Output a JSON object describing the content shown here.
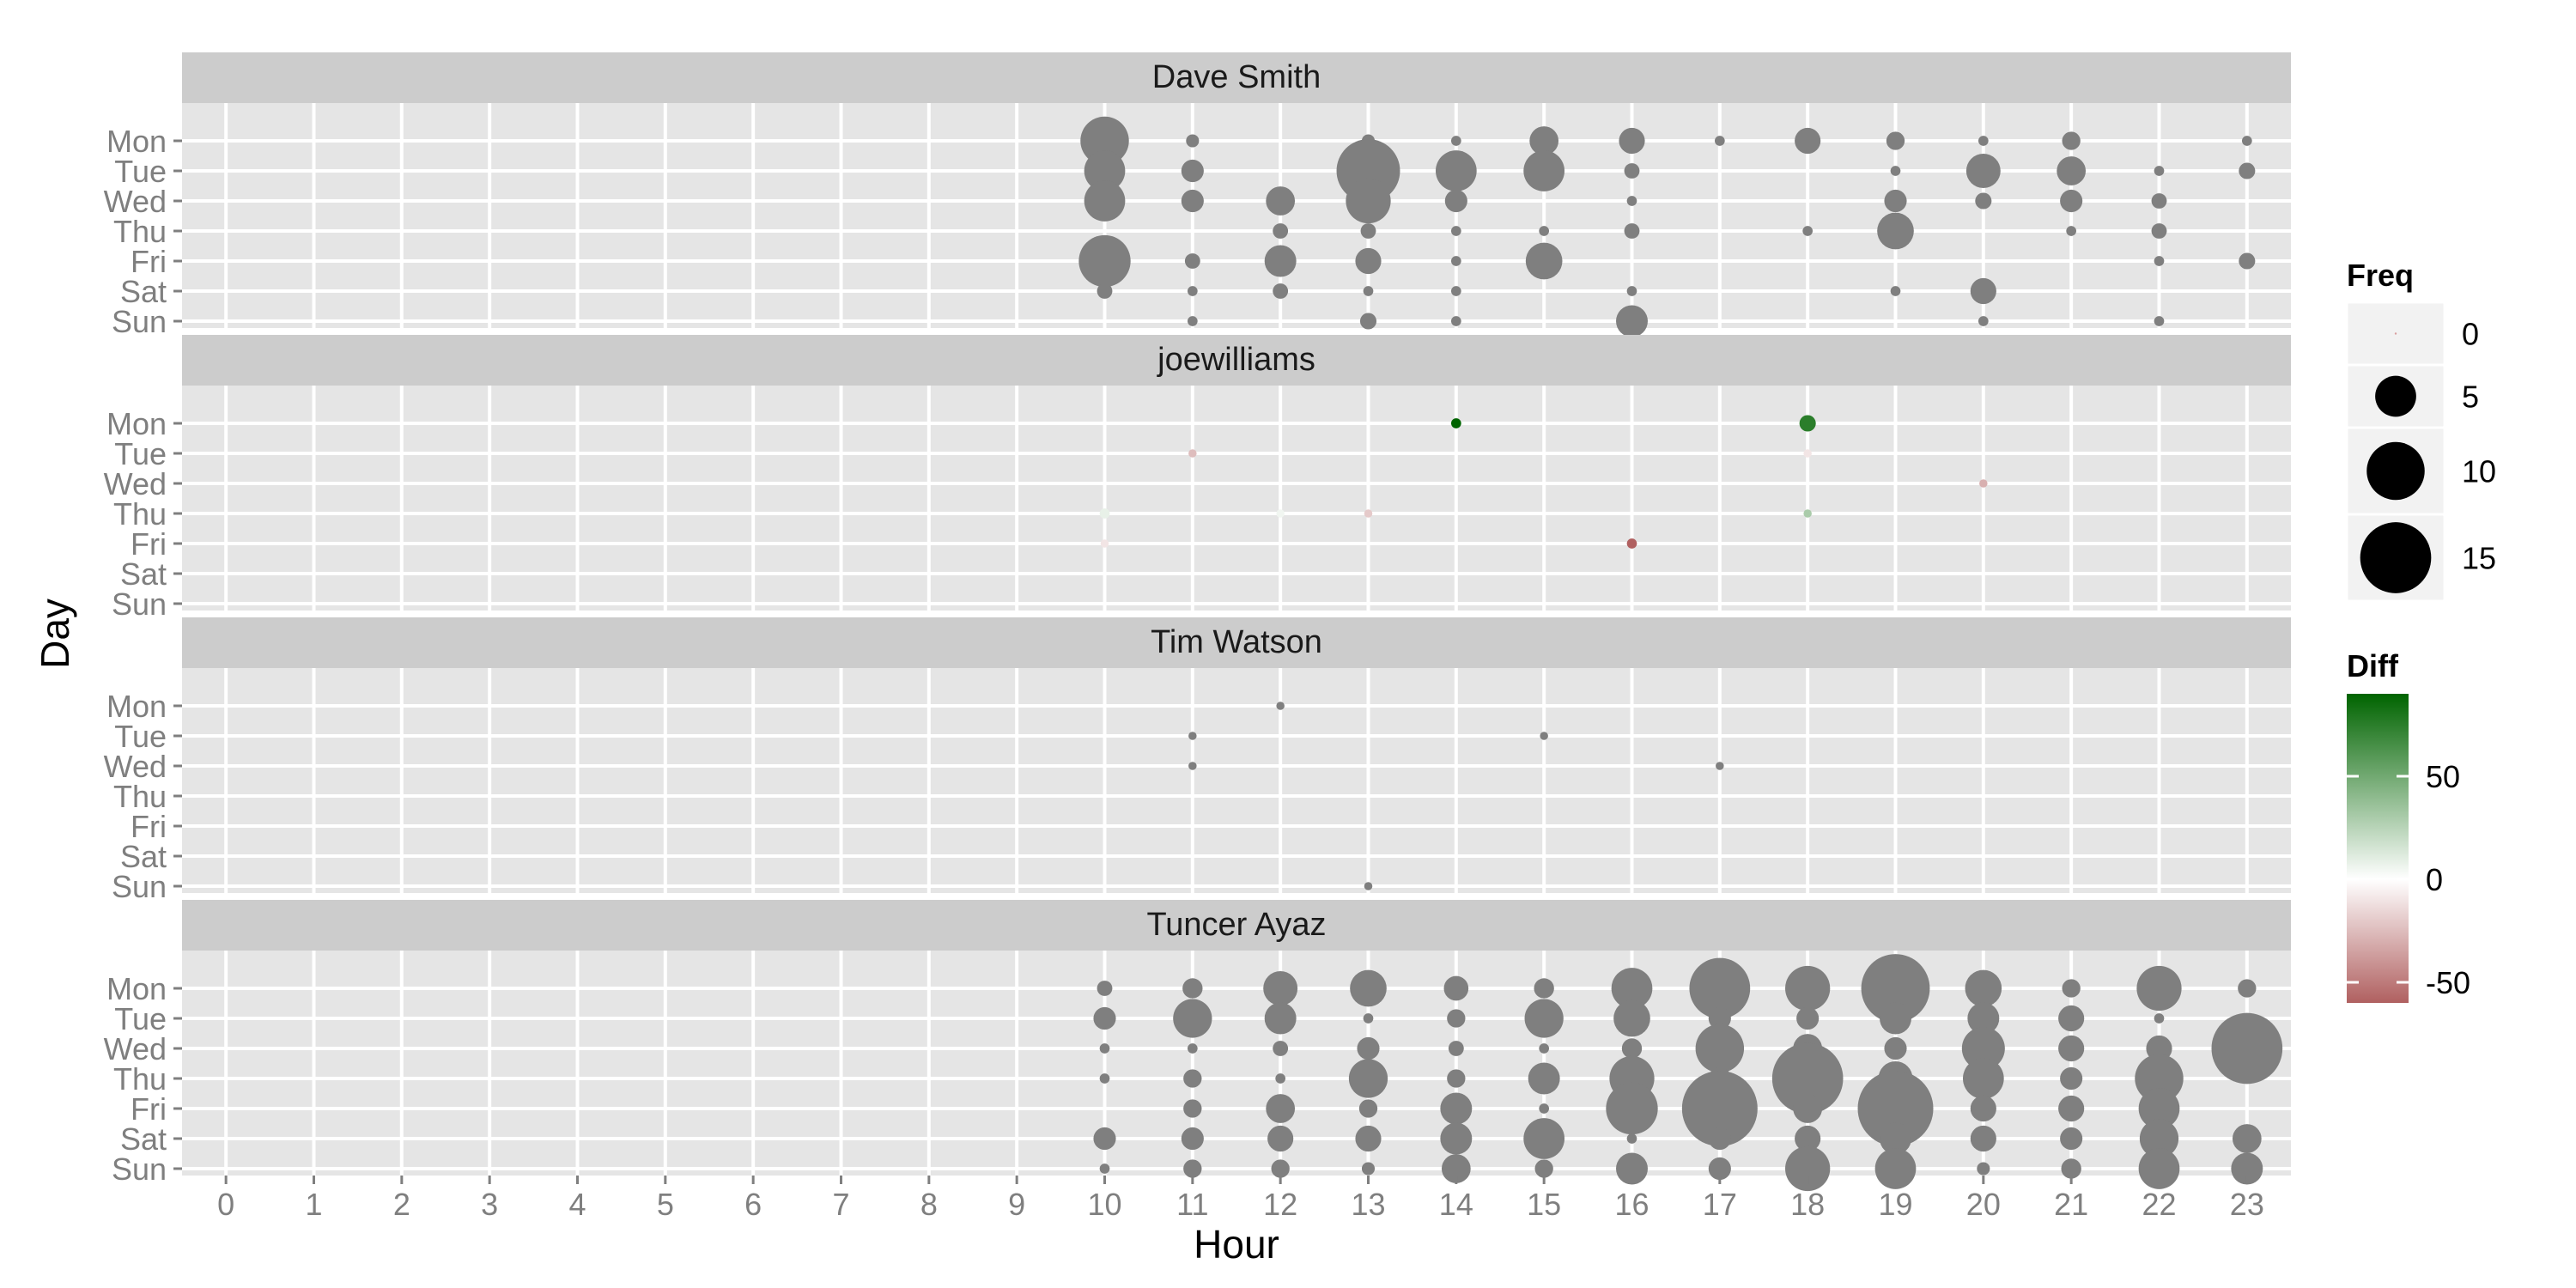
{
  "chart_data": {
    "type": "scatter",
    "xlabel": "Hour",
    "ylabel": "Day",
    "x_ticks": [
      "0",
      "1",
      "2",
      "3",
      "4",
      "5",
      "6",
      "7",
      "8",
      "9",
      "10",
      "11",
      "12",
      "13",
      "14",
      "15",
      "16",
      "17",
      "18",
      "19",
      "20",
      "21",
      "22",
      "23"
    ],
    "y_ticks": [
      "Mon",
      "Tue",
      "Wed",
      "Thu",
      "Fri",
      "Sat",
      "Sun"
    ],
    "grid": true,
    "legend_position": "right",
    "colors": {
      "panel_background": "#e5e5e5",
      "strip_background": "#cccccc",
      "grid": "#ffffff",
      "point_default": "#7f7f7f",
      "diff_high": "#006400",
      "diff_mid": "#ffffff",
      "diff_low": "#b06060"
    },
    "legends": {
      "size": {
        "title": "Freq",
        "breaks": [
          0,
          5,
          10,
          15
        ]
      },
      "color": {
        "title": "Diff",
        "breaks": [
          50,
          0,
          -50
        ],
        "range": [
          -60,
          90
        ]
      }
    },
    "facets": [
      {
        "name": "Dave Smith",
        "points": [
          {
            "hour": 10,
            "day": "Mon",
            "freq": 7
          },
          {
            "hour": 11,
            "day": "Mon",
            "freq": 0.5
          },
          {
            "hour": 13,
            "day": "Mon",
            "freq": 0.5
          },
          {
            "hour": 14,
            "day": "Mon",
            "freq": 0.3
          },
          {
            "hour": 15,
            "day": "Mon",
            "freq": 2.5
          },
          {
            "hour": 16,
            "day": "Mon",
            "freq": 2
          },
          {
            "hour": 17,
            "day": "Mon",
            "freq": 0.3
          },
          {
            "hour": 18,
            "day": "Mon",
            "freq": 2
          },
          {
            "hour": 19,
            "day": "Mon",
            "freq": 1
          },
          {
            "hour": 20,
            "day": "Mon",
            "freq": 0.3
          },
          {
            "hour": 21,
            "day": "Mon",
            "freq": 1
          },
          {
            "hour": 23,
            "day": "Mon",
            "freq": 0.3
          },
          {
            "hour": 10,
            "day": "Tue",
            "freq": 5
          },
          {
            "hour": 11,
            "day": "Tue",
            "freq": 1.5
          },
          {
            "hour": 13,
            "day": "Tue",
            "freq": 12
          },
          {
            "hour": 14,
            "day": "Tue",
            "freq": 5
          },
          {
            "hour": 15,
            "day": "Tue",
            "freq": 5
          },
          {
            "hour": 16,
            "day": "Tue",
            "freq": 0.7
          },
          {
            "hour": 19,
            "day": "Tue",
            "freq": 0.3
          },
          {
            "hour": 20,
            "day": "Tue",
            "freq": 3.5
          },
          {
            "hour": 21,
            "day": "Tue",
            "freq": 2.5
          },
          {
            "hour": 22,
            "day": "Tue",
            "freq": 0.3
          },
          {
            "hour": 23,
            "day": "Tue",
            "freq": 0.8
          },
          {
            "hour": 10,
            "day": "Wed",
            "freq": 5
          },
          {
            "hour": 11,
            "day": "Wed",
            "freq": 1.5
          },
          {
            "hour": 12,
            "day": "Wed",
            "freq": 2.5
          },
          {
            "hour": 13,
            "day": "Wed",
            "freq": 6
          },
          {
            "hour": 14,
            "day": "Wed",
            "freq": 1.5
          },
          {
            "hour": 16,
            "day": "Wed",
            "freq": 0.3
          },
          {
            "hour": 19,
            "day": "Wed",
            "freq": 1.5
          },
          {
            "hour": 20,
            "day": "Wed",
            "freq": 0.8
          },
          {
            "hour": 21,
            "day": "Wed",
            "freq": 1.5
          },
          {
            "hour": 22,
            "day": "Wed",
            "freq": 0.7
          },
          {
            "hour": 12,
            "day": "Thu",
            "freq": 0.7
          },
          {
            "hour": 13,
            "day": "Thu",
            "freq": 0.7
          },
          {
            "hour": 14,
            "day": "Thu",
            "freq": 0.3
          },
          {
            "hour": 15,
            "day": "Thu",
            "freq": 0.3
          },
          {
            "hour": 16,
            "day": "Thu",
            "freq": 0.7
          },
          {
            "hour": 18,
            "day": "Thu",
            "freq": 0.3
          },
          {
            "hour": 19,
            "day": "Thu",
            "freq": 4
          },
          {
            "hour": 21,
            "day": "Thu",
            "freq": 0.3
          },
          {
            "hour": 22,
            "day": "Thu",
            "freq": 0.7
          },
          {
            "hour": 10,
            "day": "Fri",
            "freq": 8
          },
          {
            "hour": 11,
            "day": "Fri",
            "freq": 0.7
          },
          {
            "hour": 12,
            "day": "Fri",
            "freq": 3
          },
          {
            "hour": 13,
            "day": "Fri",
            "freq": 2
          },
          {
            "hour": 14,
            "day": "Fri",
            "freq": 0.3
          },
          {
            "hour": 15,
            "day": "Fri",
            "freq": 4
          },
          {
            "hour": 22,
            "day": "Fri",
            "freq": 0.3
          },
          {
            "hour": 23,
            "day": "Fri",
            "freq": 0.8
          },
          {
            "hour": 10,
            "day": "Sat",
            "freq": 0.7
          },
          {
            "hour": 11,
            "day": "Sat",
            "freq": 0.3
          },
          {
            "hour": 12,
            "day": "Sat",
            "freq": 0.7
          },
          {
            "hour": 13,
            "day": "Sat",
            "freq": 0.3
          },
          {
            "hour": 14,
            "day": "Sat",
            "freq": 0.3
          },
          {
            "hour": 16,
            "day": "Sat",
            "freq": 0.3
          },
          {
            "hour": 19,
            "day": "Sat",
            "freq": 0.3
          },
          {
            "hour": 20,
            "day": "Sat",
            "freq": 2
          },
          {
            "hour": 11,
            "day": "Sun",
            "freq": 0.3
          },
          {
            "hour": 13,
            "day": "Sun",
            "freq": 0.8
          },
          {
            "hour": 14,
            "day": "Sun",
            "freq": 0.3
          },
          {
            "hour": 16,
            "day": "Sun",
            "freq": 3
          },
          {
            "hour": 20,
            "day": "Sun",
            "freq": 0.3
          },
          {
            "hour": 22,
            "day": "Sun",
            "freq": 0.3
          }
        ]
      },
      {
        "name": "joewilliams",
        "points": [
          {
            "hour": 14,
            "day": "Mon",
            "freq": 0.3,
            "diff": 90
          },
          {
            "hour": 18,
            "day": "Mon",
            "freq": 0.8,
            "diff": 75
          },
          {
            "hour": 11,
            "day": "Tue",
            "freq": 0.2,
            "diff": -25
          },
          {
            "hour": 18,
            "day": "Tue",
            "freq": 0.2,
            "diff": -10
          },
          {
            "hour": 20,
            "day": "Wed",
            "freq": 0.2,
            "diff": -30
          },
          {
            "hour": 10,
            "day": "Thu",
            "freq": 0.3,
            "diff": 8
          },
          {
            "hour": 12,
            "day": "Thu",
            "freq": 0.2,
            "diff": 5
          },
          {
            "hour": 13,
            "day": "Thu",
            "freq": 0.2,
            "diff": -20
          },
          {
            "hour": 18,
            "day": "Thu",
            "freq": 0.2,
            "diff": 30
          },
          {
            "hour": 10,
            "day": "Fri",
            "freq": 0.2,
            "diff": -10
          },
          {
            "hour": 16,
            "day": "Fri",
            "freq": 0.3,
            "diff": -60
          }
        ]
      },
      {
        "name": "Tim Watson",
        "points": [
          {
            "hour": 12,
            "day": "Mon",
            "freq": 0.2
          },
          {
            "hour": 11,
            "day": "Tue",
            "freq": 0.2
          },
          {
            "hour": 15,
            "day": "Tue",
            "freq": 0.2
          },
          {
            "hour": 11,
            "day": "Wed",
            "freq": 0.2
          },
          {
            "hour": 17,
            "day": "Wed",
            "freq": 0.2
          },
          {
            "hour": 13,
            "day": "Sun",
            "freq": 0.2
          }
        ]
      },
      {
        "name": "Tuncer Ayaz",
        "points": [
          {
            "hour": 10,
            "day": "Mon",
            "freq": 0.7
          },
          {
            "hour": 11,
            "day": "Mon",
            "freq": 1.2
          },
          {
            "hour": 12,
            "day": "Mon",
            "freq": 3.5
          },
          {
            "hour": 13,
            "day": "Mon",
            "freq": 4
          },
          {
            "hour": 14,
            "day": "Mon",
            "freq": 1.8
          },
          {
            "hour": 15,
            "day": "Mon",
            "freq": 1.2
          },
          {
            "hour": 16,
            "day": "Mon",
            "freq": 5
          },
          {
            "hour": 17,
            "day": "Mon",
            "freq": 11
          },
          {
            "hour": 18,
            "day": "Mon",
            "freq": 6
          },
          {
            "hour": 19,
            "day": "Mon",
            "freq": 14
          },
          {
            "hour": 20,
            "day": "Mon",
            "freq": 4
          },
          {
            "hour": 21,
            "day": "Mon",
            "freq": 1
          },
          {
            "hour": 22,
            "day": "Mon",
            "freq": 6
          },
          {
            "hour": 23,
            "day": "Mon",
            "freq": 1
          },
          {
            "hour": 10,
            "day": "Tue",
            "freq": 1.5
          },
          {
            "hour": 11,
            "day": "Tue",
            "freq": 4.5
          },
          {
            "hour": 12,
            "day": "Tue",
            "freq": 3
          },
          {
            "hour": 13,
            "day": "Tue",
            "freq": 0.3
          },
          {
            "hour": 14,
            "day": "Tue",
            "freq": 1
          },
          {
            "hour": 15,
            "day": "Tue",
            "freq": 4.5
          },
          {
            "hour": 16,
            "day": "Tue",
            "freq": 4
          },
          {
            "hour": 17,
            "day": "Tue",
            "freq": 1.5
          },
          {
            "hour": 18,
            "day": "Tue",
            "freq": 1.5
          },
          {
            "hour": 19,
            "day": "Tue",
            "freq": 3
          },
          {
            "hour": 20,
            "day": "Tue",
            "freq": 3
          },
          {
            "hour": 21,
            "day": "Tue",
            "freq": 2
          },
          {
            "hour": 22,
            "day": "Tue",
            "freq": 0.3
          },
          {
            "hour": 10,
            "day": "Wed",
            "freq": 0.3
          },
          {
            "hour": 11,
            "day": "Wed",
            "freq": 0.3
          },
          {
            "hour": 12,
            "day": "Wed",
            "freq": 0.7
          },
          {
            "hour": 13,
            "day": "Wed",
            "freq": 1.5
          },
          {
            "hour": 14,
            "day": "Wed",
            "freq": 0.7
          },
          {
            "hour": 15,
            "day": "Wed",
            "freq": 0.3
          },
          {
            "hour": 16,
            "day": "Wed",
            "freq": 1.2
          },
          {
            "hour": 17,
            "day": "Wed",
            "freq": 7
          },
          {
            "hour": 18,
            "day": "Wed",
            "freq": 2.5
          },
          {
            "hour": 19,
            "day": "Wed",
            "freq": 1.5
          },
          {
            "hour": 20,
            "day": "Wed",
            "freq": 5.5
          },
          {
            "hour": 21,
            "day": "Wed",
            "freq": 2
          },
          {
            "hour": 22,
            "day": "Wed",
            "freq": 2
          },
          {
            "hour": 23,
            "day": "Wed",
            "freq": 15
          },
          {
            "hour": 10,
            "day": "Thu",
            "freq": 0.3
          },
          {
            "hour": 11,
            "day": "Thu",
            "freq": 1
          },
          {
            "hour": 12,
            "day": "Thu",
            "freq": 0.3
          },
          {
            "hour": 13,
            "day": "Thu",
            "freq": 4.5
          },
          {
            "hour": 14,
            "day": "Thu",
            "freq": 1
          },
          {
            "hour": 15,
            "day": "Thu",
            "freq": 3
          },
          {
            "hour": 16,
            "day": "Thu",
            "freq": 6
          },
          {
            "hour": 17,
            "day": "Thu",
            "freq": 1.5
          },
          {
            "hour": 18,
            "day": "Thu",
            "freq": 15
          },
          {
            "hour": 19,
            "day": "Thu",
            "freq": 3.5
          },
          {
            "hour": 20,
            "day": "Thu",
            "freq": 5
          },
          {
            "hour": 21,
            "day": "Thu",
            "freq": 1.5
          },
          {
            "hour": 22,
            "day": "Thu",
            "freq": 7
          },
          {
            "hour": 11,
            "day": "Fri",
            "freq": 1
          },
          {
            "hour": 12,
            "day": "Fri",
            "freq": 2.5
          },
          {
            "hour": 13,
            "day": "Fri",
            "freq": 1
          },
          {
            "hour": 14,
            "day": "Fri",
            "freq": 3
          },
          {
            "hour": 15,
            "day": "Fri",
            "freq": 0.3
          },
          {
            "hour": 16,
            "day": "Fri",
            "freq": 8
          },
          {
            "hour": 17,
            "day": "Fri",
            "freq": 17
          },
          {
            "hour": 18,
            "day": "Fri",
            "freq": 2.5
          },
          {
            "hour": 19,
            "day": "Fri",
            "freq": 17
          },
          {
            "hour": 20,
            "day": "Fri",
            "freq": 2
          },
          {
            "hour": 21,
            "day": "Fri",
            "freq": 2
          },
          {
            "hour": 22,
            "day": "Fri",
            "freq": 5
          },
          {
            "hour": 10,
            "day": "Sat",
            "freq": 1.5
          },
          {
            "hour": 11,
            "day": "Sat",
            "freq": 1.5
          },
          {
            "hour": 12,
            "day": "Sat",
            "freq": 2
          },
          {
            "hour": 13,
            "day": "Sat",
            "freq": 2
          },
          {
            "hour": 14,
            "day": "Sat",
            "freq": 3
          },
          {
            "hour": 15,
            "day": "Sat",
            "freq": 5
          },
          {
            "hour": 16,
            "day": "Sat",
            "freq": 0.3
          },
          {
            "hour": 17,
            "day": "Sat",
            "freq": 1.5
          },
          {
            "hour": 18,
            "day": "Sat",
            "freq": 2
          },
          {
            "hour": 19,
            "day": "Sat",
            "freq": 3
          },
          {
            "hour": 20,
            "day": "Sat",
            "freq": 2
          },
          {
            "hour": 21,
            "day": "Sat",
            "freq": 1.5
          },
          {
            "hour": 22,
            "day": "Sat",
            "freq": 4.5
          },
          {
            "hour": 23,
            "day": "Sat",
            "freq": 2.5
          },
          {
            "hour": 10,
            "day": "Sun",
            "freq": 0.3
          },
          {
            "hour": 11,
            "day": "Sun",
            "freq": 1
          },
          {
            "hour": 12,
            "day": "Sun",
            "freq": 1
          },
          {
            "hour": 13,
            "day": "Sun",
            "freq": 0.5
          },
          {
            "hour": 14,
            "day": "Sun",
            "freq": 2.5
          },
          {
            "hour": 15,
            "day": "Sun",
            "freq": 1
          },
          {
            "hour": 16,
            "day": "Sun",
            "freq": 3
          },
          {
            "hour": 17,
            "day": "Sun",
            "freq": 1.5
          },
          {
            "hour": 18,
            "day": "Sun",
            "freq": 6
          },
          {
            "hour": 19,
            "day": "Sun",
            "freq": 5
          },
          {
            "hour": 20,
            "day": "Sun",
            "freq": 0.5
          },
          {
            "hour": 21,
            "day": "Sun",
            "freq": 1.2
          },
          {
            "hour": 22,
            "day": "Sun",
            "freq": 5
          },
          {
            "hour": 23,
            "day": "Sun",
            "freq": 3
          }
        ]
      }
    ]
  }
}
